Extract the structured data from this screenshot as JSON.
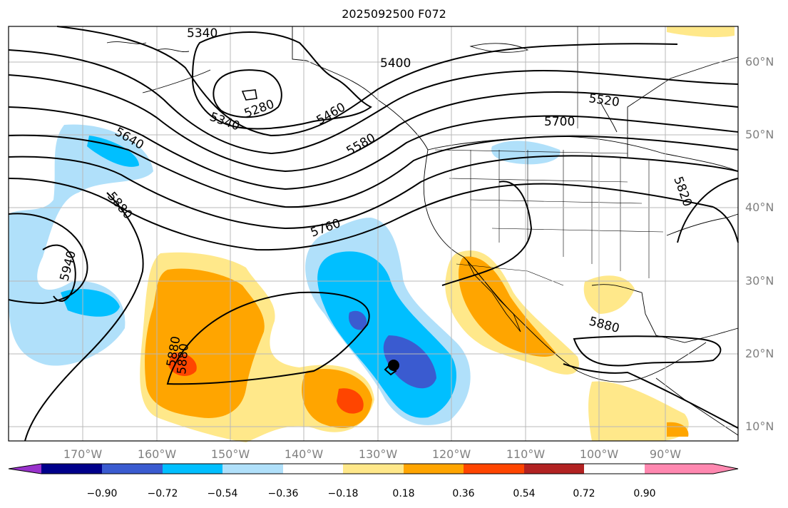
{
  "title": "2025092500 F072",
  "lat_labels": [
    "60°N",
    "50°N",
    "40°N",
    "30°N",
    "20°N",
    "10°N"
  ],
  "lon_labels": [
    "170°W",
    "160°W",
    "150°W",
    "140°W",
    "130°W",
    "120°W",
    "110°W",
    "100°W",
    "90°W"
  ],
  "colorbar": {
    "ticks": [
      "−0.90",
      "−0.72",
      "−0.54",
      "−0.36",
      "−0.18",
      "0.18",
      "0.36",
      "0.54",
      "0.72",
      "0.90"
    ],
    "colors": [
      "#9932cc",
      "#00008b",
      "#3a5bd0",
      "#00bfff",
      "#b0e0fa",
      "#ffffff",
      "#ffe88a",
      "#ffa500",
      "#ff4500",
      "#b22222",
      "#ff88b0"
    ]
  },
  "contour_labels": [
    "5340",
    "5340",
    "5280",
    "5400",
    "5460",
    "5520",
    "5580",
    "5640",
    "5700",
    "5760",
    "5820",
    "5880",
    "5880",
    "5880",
    "5880",
    "5940"
  ],
  "colors": {
    "ocean": "#ffffff",
    "grid": "#b8b8b8",
    "contour": "#000000",
    "axis_text": "#808080"
  }
}
